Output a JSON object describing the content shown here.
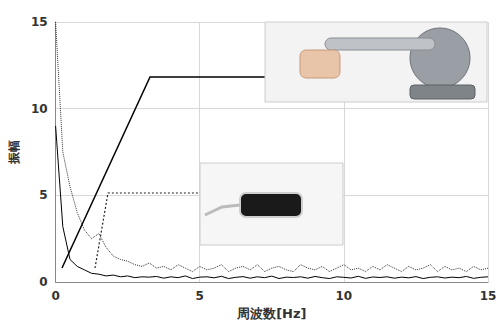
{
  "chart_data": {
    "type": "line",
    "x_label": "周波数[Hz]",
    "y_label": "振幅",
    "x": [
      0,
      0.25,
      0.5,
      0.75,
      1,
      1.25,
      1.5,
      1.75,
      2,
      2.25,
      2.5,
      2.75,
      3,
      3.25,
      3.5,
      3.75,
      4,
      4.25,
      4.5,
      4.75,
      5,
      5.25,
      5.5,
      5.75,
      6,
      6.25,
      6.5,
      6.75,
      7,
      7.25,
      7.5,
      7.75,
      8,
      8.25,
      8.5,
      8.75,
      9,
      9.25,
      9.5,
      9.75,
      10,
      10.25,
      10.5,
      10.75,
      11,
      11.25,
      11.5,
      11.75,
      12,
      12.25,
      12.5,
      12.75,
      13,
      13.25,
      13.5,
      13.75,
      14,
      14.25,
      14.5,
      14.75,
      15
    ],
    "series": [
      {
        "color": "#000000",
        "line_style": "solid",
        "values": [
          9,
          3.2,
          1.3,
          0.9,
          0.7,
          0.5,
          0.45,
          0.35,
          0.4,
          0.3,
          0.35,
          0.25,
          0.3,
          0.28,
          0.32,
          0.22,
          0.3,
          0.25,
          0.35,
          0.2,
          0.28,
          0.3,
          0.24,
          0.33,
          0.2,
          0.27,
          0.31,
          0.22,
          0.3,
          0.25,
          0.34,
          0.2,
          0.28,
          0.26,
          0.3,
          0.22,
          0.32,
          0.25,
          0.2,
          0.3,
          0.27,
          0.23,
          0.33,
          0.21,
          0.29,
          0.26,
          0.3,
          0.22,
          0.28,
          0.24,
          0.31,
          0.2,
          0.27,
          0.3,
          0.23,
          0.28,
          0.25,
          0.32,
          0.21,
          0.27,
          0.3
        ]
      },
      {
        "color": "#333333",
        "line_style": "dotted",
        "values": [
          15,
          7.5,
          5.5,
          4,
          3,
          2.5,
          2.8,
          2,
          1.5,
          1.3,
          1.2,
          1,
          0.9,
          1.1,
          0.8,
          0.9,
          0.7,
          1,
          0.8,
          0.6,
          0.9,
          0.7,
          0.8,
          1,
          0.6,
          0.8,
          0.9,
          0.7,
          1,
          0.6,
          0.8,
          0.9,
          0.7,
          0.6,
          1,
          0.8,
          0.7,
          0.9,
          0.6,
          0.8,
          1,
          0.7,
          0.8,
          0.6,
          0.9,
          0.7,
          1,
          0.8,
          0.6,
          0.9,
          0.7,
          0.8,
          1,
          0.6,
          0.9,
          0.7,
          0.8,
          0.6,
          0.9,
          0.7,
          0.8
        ]
      }
    ],
    "xlim": [
      0,
      15
    ],
    "xticks": [
      0,
      5,
      10,
      15
    ],
    "ylim": [
      0,
      15
    ],
    "yticks": [
      0,
      5,
      10,
      15
    ],
    "grid": true
  }
}
